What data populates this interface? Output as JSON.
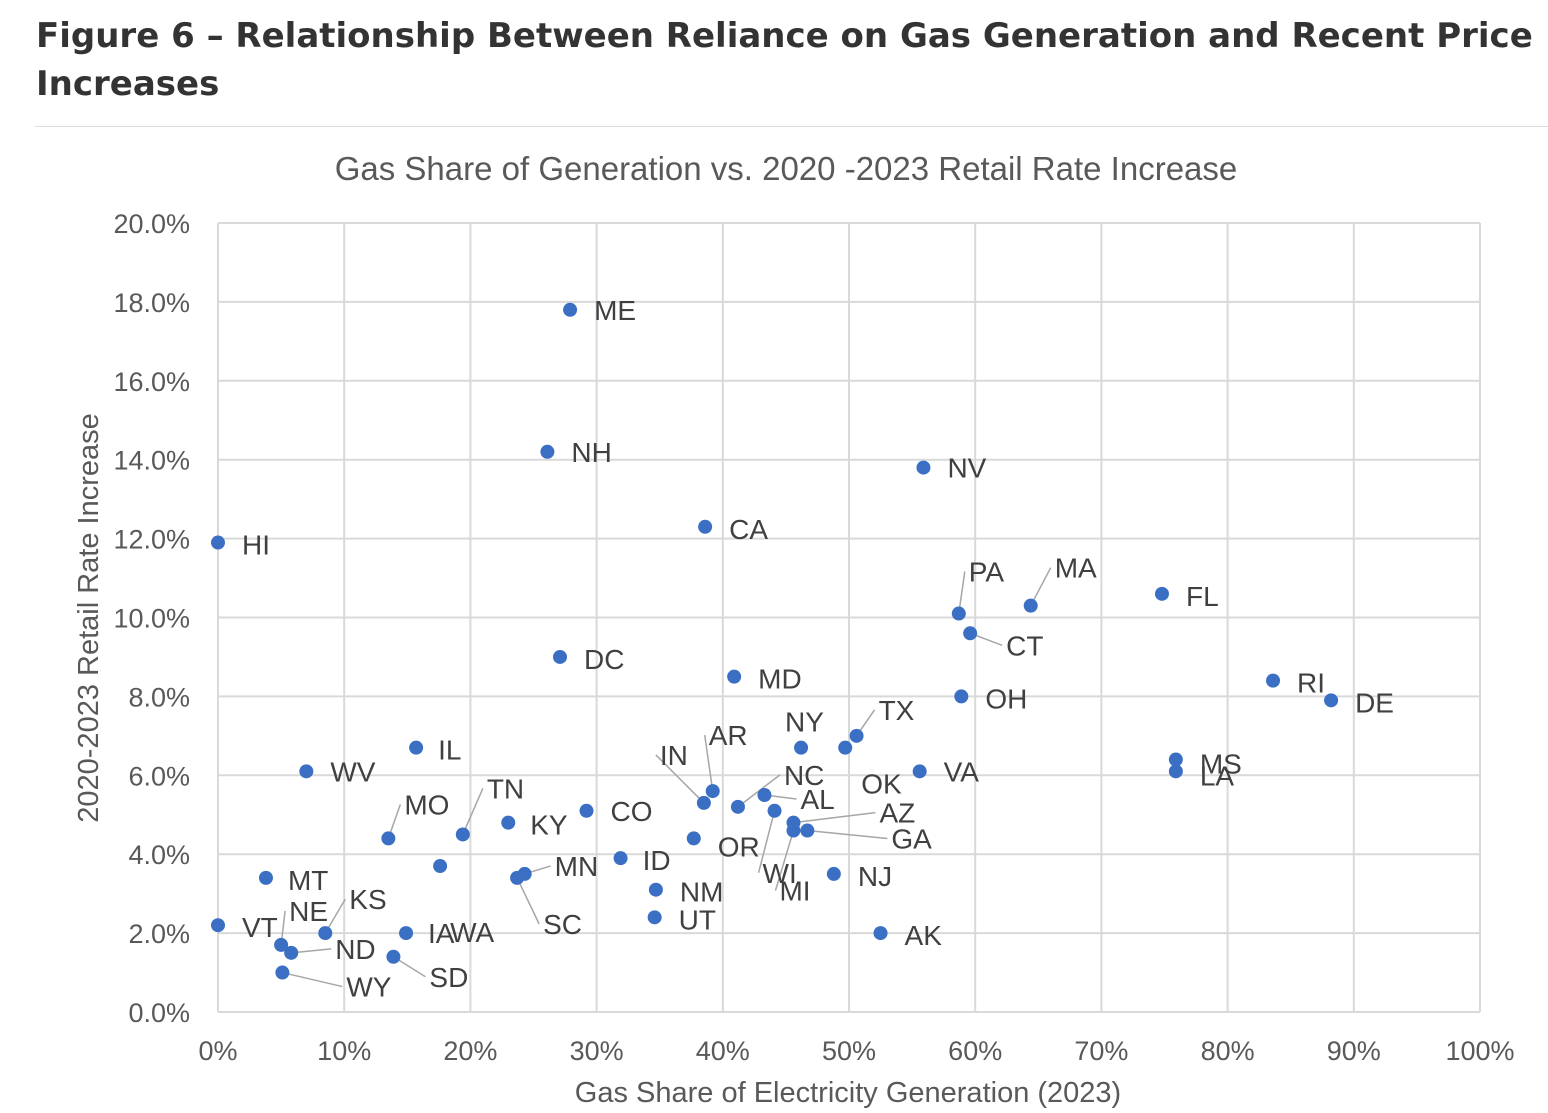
{
  "figure": {
    "title_line1": "Figure 6 – Relationship Between Reliance on Gas Generation and Recent Price",
    "title_line2": "Increases"
  },
  "chart_data": {
    "type": "scatter",
    "title": "Gas Share of Generation vs. 2020 -2023 Retail Rate Increase",
    "xlabel": "Gas Share of Electricity Generation (2023)",
    "ylabel": "2020-2023 Retail Rate Increase",
    "xlim": [
      0,
      100
    ],
    "ylim": [
      0,
      20
    ],
    "x_ticks": [
      "0%",
      "10%",
      "20%",
      "30%",
      "40%",
      "50%",
      "60%",
      "70%",
      "80%",
      "90%",
      "100%"
    ],
    "y_ticks": [
      "0.0%",
      "2.0%",
      "4.0%",
      "6.0%",
      "8.0%",
      "10.0%",
      "12.0%",
      "14.0%",
      "16.0%",
      "18.0%",
      "20.0%"
    ],
    "grid": true,
    "point_color": "#3a6fc4",
    "points": [
      {
        "label": "ME",
        "x": 27.9,
        "y": 17.8
      },
      {
        "label": "NH",
        "x": 26.1,
        "y": 14.2
      },
      {
        "label": "NV",
        "x": 55.9,
        "y": 13.8
      },
      {
        "label": "CA",
        "x": 38.6,
        "y": 12.3
      },
      {
        "label": "HI",
        "x": 0.0,
        "y": 11.9
      },
      {
        "label": "PA",
        "x": 58.7,
        "y": 10.1
      },
      {
        "label": "MA",
        "x": 64.4,
        "y": 10.3
      },
      {
        "label": "FL",
        "x": 74.8,
        "y": 10.6
      },
      {
        "label": "CT",
        "x": 59.6,
        "y": 9.6
      },
      {
        "label": "DC",
        "x": 27.1,
        "y": 9.0
      },
      {
        "label": "MD",
        "x": 40.9,
        "y": 8.5
      },
      {
        "label": "RI",
        "x": 83.6,
        "y": 8.4
      },
      {
        "label": "DE",
        "x": 88.2,
        "y": 7.9
      },
      {
        "label": "OH",
        "x": 58.9,
        "y": 8.0
      },
      {
        "label": "TX",
        "x": 50.6,
        "y": 7.0
      },
      {
        "label": "NY",
        "x": 46.2,
        "y": 6.7
      },
      {
        "label": "OK",
        "x": 49.7,
        "y": 6.7
      },
      {
        "label": "VA",
        "x": 55.6,
        "y": 6.1
      },
      {
        "label": "IL",
        "x": 15.7,
        "y": 6.7
      },
      {
        "label": "WV",
        "x": 7.0,
        "y": 6.1
      },
      {
        "label": "MS",
        "x": 75.9,
        "y": 6.4
      },
      {
        "label": "LA",
        "x": 75.9,
        "y": 6.1
      },
      {
        "label": "AR",
        "x": 39.2,
        "y": 5.6
      },
      {
        "label": "IN",
        "x": 38.5,
        "y": 5.3
      },
      {
        "label": "NC",
        "x": 41.2,
        "y": 5.2
      },
      {
        "label": "AL",
        "x": 43.3,
        "y": 5.5
      },
      {
        "label": "WI",
        "x": 44.1,
        "y": 5.1
      },
      {
        "label": "AZ",
        "x": 45.6,
        "y": 4.8
      },
      {
        "label": "GA",
        "x": 46.7,
        "y": 4.6
      },
      {
        "label": "MI",
        "x": 45.6,
        "y": 4.6
      },
      {
        "label": "TN",
        "x": 19.4,
        "y": 4.5
      },
      {
        "label": "MO",
        "x": 13.5,
        "y": 4.4
      },
      {
        "label": "KY",
        "x": 23.0,
        "y": 4.8
      },
      {
        "label": "CO",
        "x": 29.2,
        "y": 5.1
      },
      {
        "label": "OR",
        "x": 37.7,
        "y": 4.4
      },
      {
        "label": "ID",
        "x": 31.9,
        "y": 3.9
      },
      {
        "label": "NJ",
        "x": 48.8,
        "y": 3.5
      },
      {
        "label": "MN",
        "x": 24.3,
        "y": 3.5
      },
      {
        "label": "SC",
        "x": 23.7,
        "y": 3.4
      },
      {
        "label": "WA",
        "x": 17.6,
        "y": 3.7
      },
      {
        "label": "NM",
        "x": 34.7,
        "y": 3.1
      },
      {
        "label": "UT",
        "x": 34.6,
        "y": 2.4
      },
      {
        "label": "AK",
        "x": 52.5,
        "y": 2.0
      },
      {
        "label": "MT",
        "x": 3.8,
        "y": 3.4
      },
      {
        "label": "VT",
        "x": 0.0,
        "y": 2.2
      },
      {
        "label": "NE",
        "x": 5.0,
        "y": 1.7
      },
      {
        "label": "ND",
        "x": 5.8,
        "y": 1.5
      },
      {
        "label": "KS",
        "x": 8.5,
        "y": 2.0
      },
      {
        "label": "IA",
        "x": 14.9,
        "y": 2.0
      },
      {
        "label": "SD",
        "x": 13.9,
        "y": 1.4
      },
      {
        "label": "WY",
        "x": 5.1,
        "y": 1.0
      }
    ]
  }
}
